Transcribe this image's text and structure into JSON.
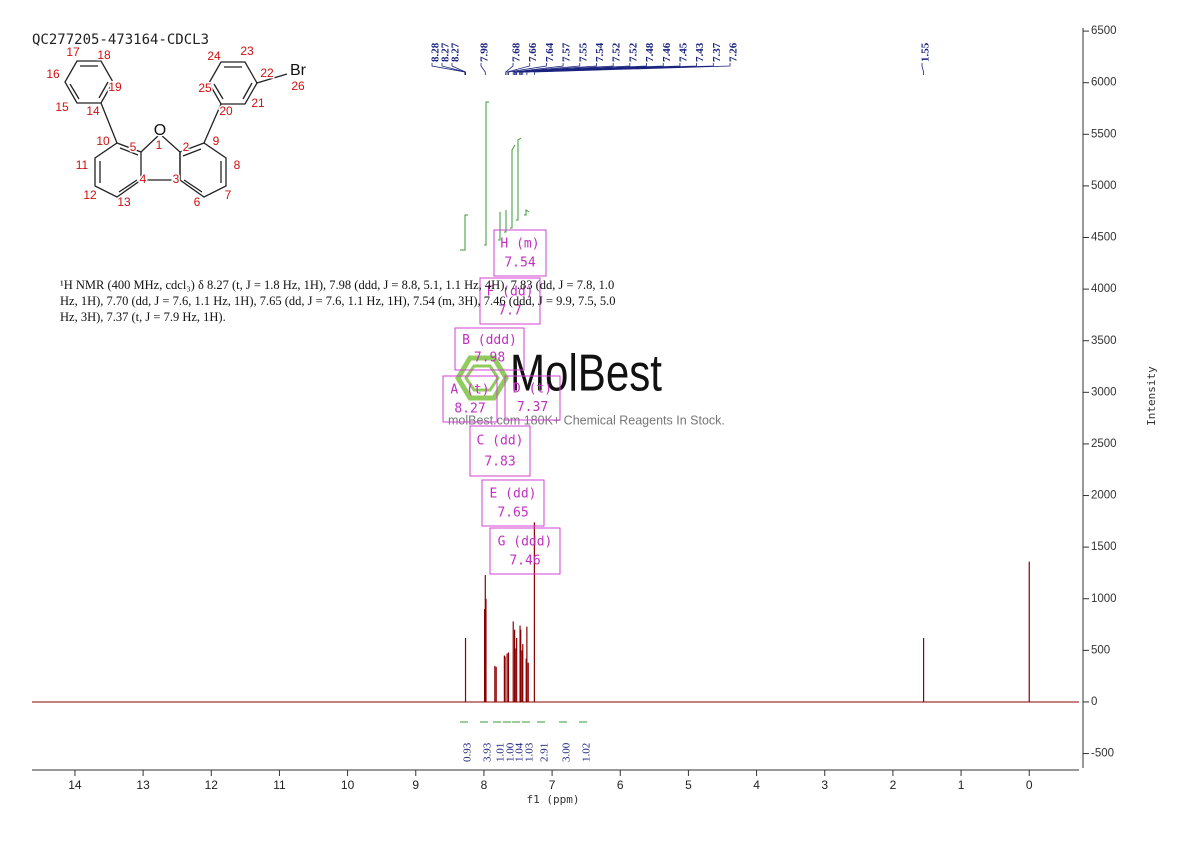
{
  "chart_data": {
    "type": "spectrum",
    "title": "QC277205-473164-CDCL3",
    "xlabel": "f1 (ppm)",
    "ylabel": "Intensity",
    "x": [
      8.27,
      7.99,
      7.98,
      7.97,
      7.84,
      7.82,
      7.7,
      7.69,
      7.66,
      7.64,
      7.57,
      7.55,
      7.54,
      7.52,
      7.47,
      7.46,
      7.44,
      7.43,
      7.38,
      7.37,
      7.35,
      7.26,
      1.55,
      0
    ],
    "values": [
      620,
      900,
      1230,
      1000,
      350,
      340,
      450,
      440,
      470,
      480,
      780,
      700,
      520,
      620,
      740,
      700,
      500,
      560,
      420,
      730,
      380,
      1740,
      620,
      1360
    ],
    "color": "#8b0000",
    "xlim": [
      14.63,
      -0.73
    ],
    "xticks": [
      14,
      13,
      12,
      11,
      10,
      9,
      8,
      7,
      6,
      5,
      4,
      3,
      2,
      1,
      0
    ],
    "ylim": [
      -640,
      6530
    ],
    "yticks": [
      -500,
      0,
      500,
      1000,
      1500,
      2000,
      2500,
      3000,
      3500,
      4000,
      4500,
      5000,
      5500,
      6000,
      6500
    ],
    "peak_labels": [
      8.28,
      8.27,
      8.27,
      7.98,
      7.68,
      7.66,
      7.64,
      7.57,
      7.55,
      7.54,
      7.52,
      7.52,
      7.48,
      7.46,
      7.45,
      7.43,
      7.37,
      7.26,
      1.55
    ],
    "integrals": [
      0.93,
      3.93,
      1.01,
      {
        "value": 1,
        "label": "1.00"
      },
      1.04,
      1.03,
      2.91,
      {
        "value": 3,
        "label": "3.00"
      },
      1.02
    ],
    "multiplets": [
      {
        "label": "H (m)",
        "shift": 7.54
      },
      {
        "label": "F (dd)",
        "shift": 7.7
      },
      {
        "label": "B (ddd)",
        "shift": 7.98
      },
      {
        "label": "A (t)",
        "shift": 8.27
      },
      {
        "label": "D (t)",
        "shift": 7.37
      },
      {
        "label": "C (dd)",
        "shift": 7.83
      },
      {
        "label": "E (dd)",
        "shift": 7.65
      },
      {
        "label": "G (ddd)",
        "shift": 7.46
      }
    ],
    "description": "¹H NMR (400 MHz, cdcl₃) δ 8.27 (t, J = 1.8 Hz, 1H), 7.98 (ddd, J = 8.8, 5.1, 1.1 Hz, 4H), 7.83 (dd, J = 7.8, 1.0 Hz, 1H), 7.70 (dd, J = 7.6, 1.1 Hz, 1H), 7.65 (dd, J = 7.6, 1.1 Hz, 1H), 7.54 (m, 3H), 7.46 (ddd, J = 9.9, 7.5, 5.0 Hz, 3H), 7.37 (t, J = 7.9 Hz, 1H).",
    "watermark": {
      "brand": "MolBest",
      "tagline": "molBest.com 180K+ Chemical Reagents In Stock."
    }
  },
  "structure": {
    "labels": [
      "17",
      "18",
      "16",
      "19",
      "15",
      "14",
      "10",
      "5",
      "O",
      "1",
      "2",
      "9",
      "20",
      "21",
      "22",
      "Br",
      "26",
      "23",
      "24",
      "25",
      "11",
      "12",
      "13",
      "4",
      "3",
      "6",
      "7",
      "8"
    ]
  }
}
